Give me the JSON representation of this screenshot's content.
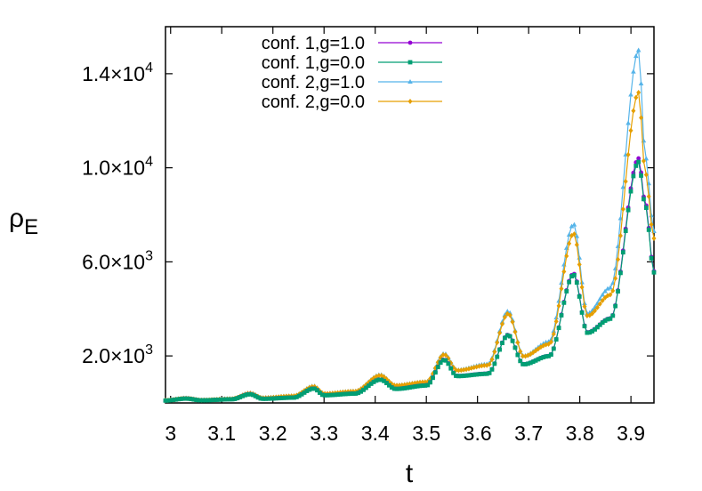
{
  "chart_data": {
    "type": "line",
    "xlabel": "t",
    "ylabel_main": "ρ",
    "ylabel_sub": "E",
    "xlim": [
      2.99,
      3.945
    ],
    "ylim": [
      0,
      16000
    ],
    "xticks": [
      {
        "value": 3.0,
        "label": "3"
      },
      {
        "value": 3.1,
        "label": "3.1"
      },
      {
        "value": 3.2,
        "label": "3.2"
      },
      {
        "value": 3.3,
        "label": "3.3"
      },
      {
        "value": 3.4,
        "label": "3.4"
      },
      {
        "value": 3.5,
        "label": "3.5"
      },
      {
        "value": 3.6,
        "label": "3.6"
      },
      {
        "value": 3.7,
        "label": "3.7"
      },
      {
        "value": 3.8,
        "label": "3.8"
      },
      {
        "value": 3.9,
        "label": "3.9"
      }
    ],
    "yticks": [
      {
        "value": 2000,
        "mantissa": "2.0×10",
        "exp": "3"
      },
      {
        "value": 6000,
        "mantissa": "6.0×10",
        "exp": "3"
      },
      {
        "value": 10000,
        "mantissa": "1.0×10",
        "exp": "4"
      },
      {
        "value": 14000,
        "mantissa": "1.4×10",
        "exp": "4"
      }
    ],
    "legend_position": "top-left",
    "series": [
      {
        "name": "conf. 1,g=1.0",
        "color": "#9400d3",
        "marker": "circle",
        "points": [
          [
            2.99,
            100
          ],
          [
            3.03,
            190
          ],
          [
            3.06,
            110
          ],
          [
            3.12,
            160
          ],
          [
            3.155,
            380
          ],
          [
            3.18,
            180
          ],
          [
            3.24,
            230
          ],
          [
            3.28,
            620
          ],
          [
            3.3,
            330
          ],
          [
            3.36,
            400
          ],
          [
            3.41,
            1000
          ],
          [
            3.44,
            600
          ],
          [
            3.5,
            750
          ],
          [
            3.535,
            1850
          ],
          [
            3.56,
            1150
          ],
          [
            3.62,
            1250
          ],
          [
            3.66,
            2900
          ],
          [
            3.69,
            1650
          ],
          [
            3.74,
            2000
          ],
          [
            3.788,
            5500
          ],
          [
            3.815,
            3000
          ],
          [
            3.86,
            3600
          ],
          [
            3.915,
            10400
          ],
          [
            3.928,
            8500
          ],
          [
            3.945,
            5600
          ]
        ]
      },
      {
        "name": "conf. 1,g=0.0",
        "color": "#009e73",
        "marker": "square",
        "points": [
          [
            2.99,
            100
          ],
          [
            3.03,
            185
          ],
          [
            3.06,
            110
          ],
          [
            3.12,
            155
          ],
          [
            3.155,
            370
          ],
          [
            3.18,
            175
          ],
          [
            3.24,
            225
          ],
          [
            3.28,
            610
          ],
          [
            3.3,
            325
          ],
          [
            3.36,
            395
          ],
          [
            3.41,
            990
          ],
          [
            3.44,
            595
          ],
          [
            3.5,
            740
          ],
          [
            3.535,
            1830
          ],
          [
            3.56,
            1140
          ],
          [
            3.62,
            1240
          ],
          [
            3.66,
            2880
          ],
          [
            3.69,
            1640
          ],
          [
            3.74,
            1990
          ],
          [
            3.788,
            5450
          ],
          [
            3.815,
            2980
          ],
          [
            3.86,
            3580
          ],
          [
            3.915,
            10250
          ],
          [
            3.928,
            8400
          ],
          [
            3.945,
            5550
          ]
        ]
      },
      {
        "name": "conf. 2,g=1.0",
        "color": "#56b4e9",
        "marker": "triangle",
        "points": [
          [
            2.99,
            110
          ],
          [
            3.03,
            200
          ],
          [
            3.06,
            120
          ],
          [
            3.12,
            180
          ],
          [
            3.155,
            420
          ],
          [
            3.18,
            220
          ],
          [
            3.24,
            300
          ],
          [
            3.28,
            720
          ],
          [
            3.3,
            400
          ],
          [
            3.36,
            500
          ],
          [
            3.41,
            1200
          ],
          [
            3.44,
            750
          ],
          [
            3.5,
            900
          ],
          [
            3.535,
            2100
          ],
          [
            3.56,
            1400
          ],
          [
            3.62,
            1650
          ],
          [
            3.66,
            3900
          ],
          [
            3.69,
            2000
          ],
          [
            3.74,
            2600
          ],
          [
            3.788,
            7600
          ],
          [
            3.815,
            3800
          ],
          [
            3.86,
            4900
          ],
          [
            3.915,
            15000
          ],
          [
            3.928,
            10500
          ],
          [
            3.945,
            7300
          ]
        ]
      },
      {
        "name": "conf. 2,g=0.0",
        "color": "#e69f00",
        "marker": "diamond",
        "points": [
          [
            2.99,
            110
          ],
          [
            3.03,
            200
          ],
          [
            3.06,
            120
          ],
          [
            3.12,
            175
          ],
          [
            3.155,
            410
          ],
          [
            3.18,
            215
          ],
          [
            3.24,
            295
          ],
          [
            3.28,
            700
          ],
          [
            3.3,
            390
          ],
          [
            3.36,
            490
          ],
          [
            3.41,
            1170
          ],
          [
            3.44,
            740
          ],
          [
            3.5,
            890
          ],
          [
            3.535,
            2060
          ],
          [
            3.56,
            1380
          ],
          [
            3.62,
            1600
          ],
          [
            3.66,
            3800
          ],
          [
            3.69,
            1980
          ],
          [
            3.74,
            2500
          ],
          [
            3.788,
            7200
          ],
          [
            3.815,
            3700
          ],
          [
            3.86,
            4600
          ],
          [
            3.915,
            13200
          ],
          [
            3.928,
            9800
          ],
          [
            3.945,
            7000
          ]
        ]
      }
    ]
  }
}
